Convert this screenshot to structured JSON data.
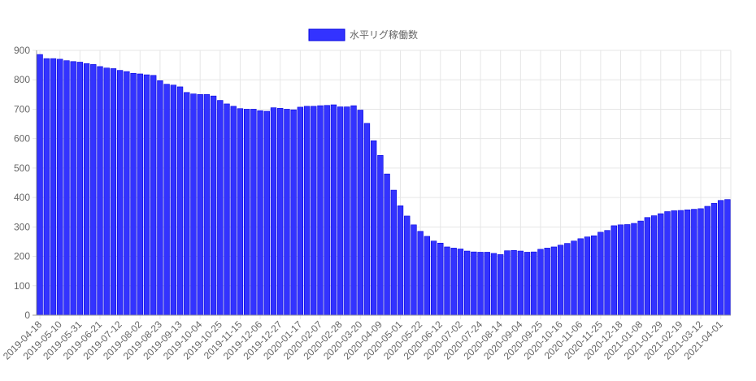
{
  "chart_data": {
    "type": "bar",
    "legend": {
      "position": "top",
      "label": "水平リグ稼働数"
    },
    "colors": {
      "bar_fill": "#3333ff",
      "bar_stroke": "#0000e0",
      "grid": "#e6e6e6",
      "axis": "#999999"
    },
    "ylim": [
      0,
      900
    ],
    "yticks": [
      0,
      100,
      200,
      300,
      400,
      500,
      600,
      700,
      800,
      900
    ],
    "grid": true,
    "x_tick_labels": [
      "2019-04-18",
      "2019-05-10",
      "2019-05-31",
      "2019-06-21",
      "2019-07-12",
      "2019-08-02",
      "2019-08-23",
      "2019-09-13",
      "2019-10-04",
      "2019-10-25",
      "2019-11-15",
      "2019-12-06",
      "2019-12-27",
      "2020-01-17",
      "2020-02-07",
      "2020-02-28",
      "2020-03-20",
      "2020-04-09",
      "2020-05-01",
      "2020-05-22",
      "2020-06-12",
      "2020-07-02",
      "2020-07-24",
      "2020-08-14",
      "2020-09-04",
      "2020-09-25",
      "2020-10-16",
      "2020-11-06",
      "2020-11-25",
      "2020-12-18",
      "2021-01-08",
      "2021-01-29",
      "2021-02-19",
      "2021-03-12",
      "2021-04-01"
    ],
    "series": [
      {
        "name": "水平リグ稼働数",
        "values": [
          886,
          872,
          872,
          870,
          865,
          862,
          860,
          855,
          852,
          845,
          840,
          838,
          832,
          828,
          822,
          820,
          817,
          815,
          797,
          785,
          782,
          776,
          757,
          752,
          750,
          750,
          745,
          730,
          718,
          710,
          702,
          700,
          700,
          695,
          693,
          705,
          703,
          700,
          698,
          707,
          710,
          710,
          712,
          713,
          715,
          708,
          708,
          712,
          697,
          652,
          593,
          543,
          480,
          425,
          372,
          337,
          307,
          285,
          268,
          252,
          245,
          232,
          228,
          225,
          218,
          215,
          214,
          214,
          210,
          206,
          219,
          220,
          218,
          214,
          215,
          224,
          228,
          232,
          238,
          244,
          252,
          260,
          266,
          270,
          282,
          288,
          304,
          307,
          308,
          312,
          320,
          332,
          338,
          345,
          352,
          355,
          356,
          358,
          360,
          362,
          370,
          380,
          390,
          393
        ]
      }
    ]
  }
}
